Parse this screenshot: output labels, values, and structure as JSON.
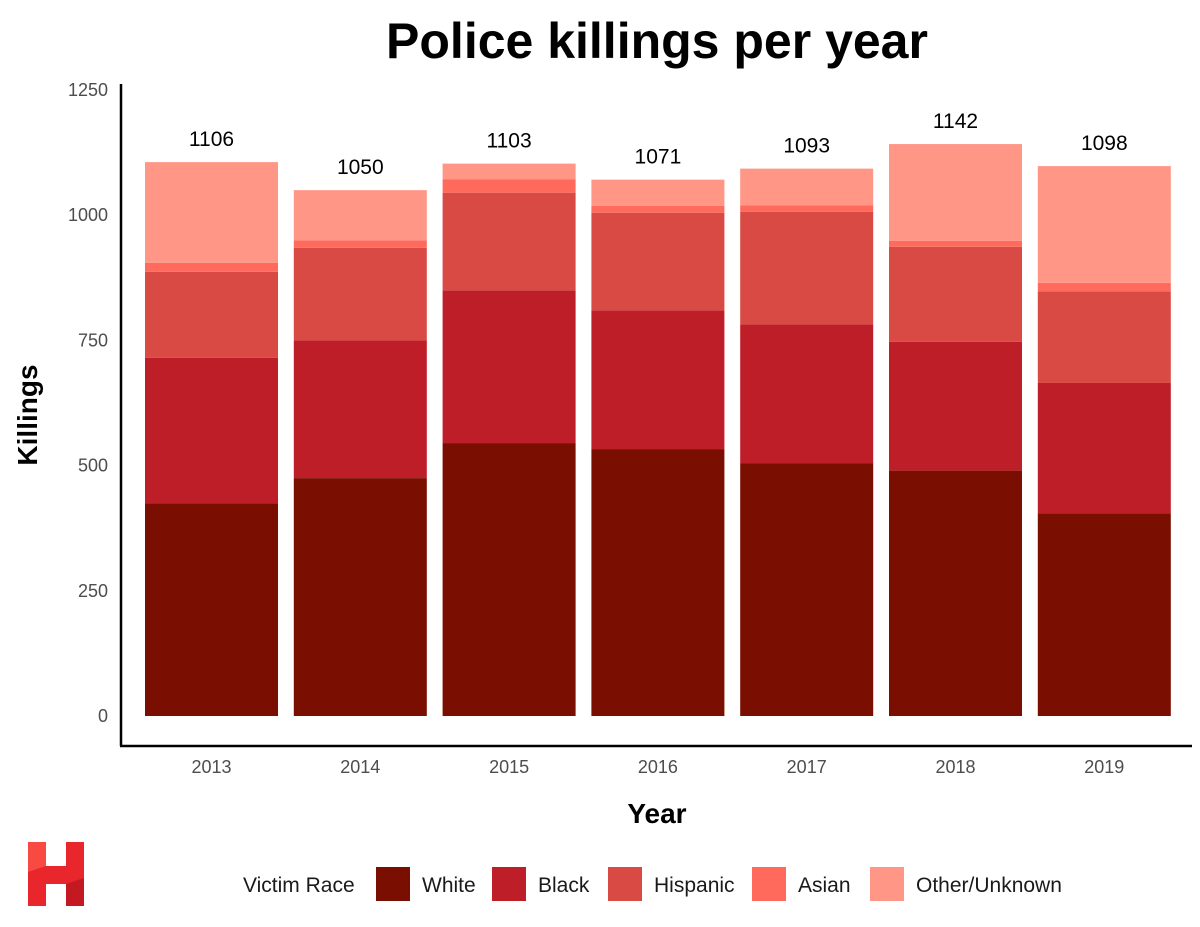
{
  "chart_data": {
    "type": "bar",
    "stacked": true,
    "title": "Police killings per year",
    "xlabel": "Year",
    "ylabel": "Killings",
    "ylim": [
      0,
      1250
    ],
    "yticks": [
      0,
      250,
      500,
      750,
      1000,
      1250
    ],
    "categories": [
      "2013",
      "2014",
      "2015",
      "2016",
      "2017",
      "2018",
      "2019"
    ],
    "totals": [
      1106,
      1050,
      1103,
      1071,
      1093,
      1142,
      1098
    ],
    "series": [
      {
        "name": "White",
        "color": "#7a0e00",
        "values": [
          425,
          475,
          545,
          533,
          505,
          490,
          405
        ]
      },
      {
        "name": "Black",
        "color": "#be1e28",
        "values": [
          290,
          275,
          305,
          277,
          277,
          257,
          260
        ]
      },
      {
        "name": "Hispanic",
        "color": "#d94a44",
        "values": [
          172,
          185,
          195,
          195,
          225,
          190,
          183
        ]
      },
      {
        "name": "Asian",
        "color": "#ff6a5c",
        "values": [
          18,
          15,
          27,
          14,
          13,
          12,
          17
        ]
      },
      {
        "name": "Other/Unknown",
        "color": "#ff9686",
        "values": [
          201,
          100,
          31,
          52,
          73,
          193,
          233
        ]
      }
    ],
    "legend": {
      "title": "Victim Race",
      "position": "bottom"
    }
  },
  "logo": {
    "letter": "H",
    "color": "#e8262b"
  }
}
